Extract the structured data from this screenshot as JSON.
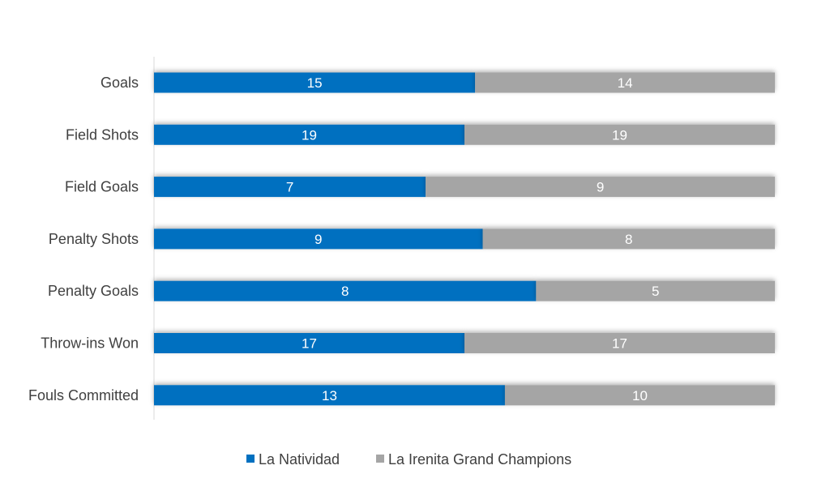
{
  "chart_data": {
    "type": "bar",
    "orientation": "horizontal",
    "stacked": "percent",
    "categories": [
      "Goals",
      "Field Shots",
      "Field Goals",
      "Penalty Shots",
      "Penalty Goals",
      "Throw-ins Won",
      "Fouls Committed"
    ],
    "series": [
      {
        "name": "La Natividad",
        "color": "#0070C0",
        "values": [
          15,
          19,
          7,
          9,
          8,
          17,
          13
        ]
      },
      {
        "name": "La Irenita Grand Champions",
        "color": "#A5A5A5",
        "values": [
          14,
          19,
          9,
          8,
          5,
          17,
          10
        ]
      }
    ],
    "legend": "bottom",
    "grid": false
  }
}
